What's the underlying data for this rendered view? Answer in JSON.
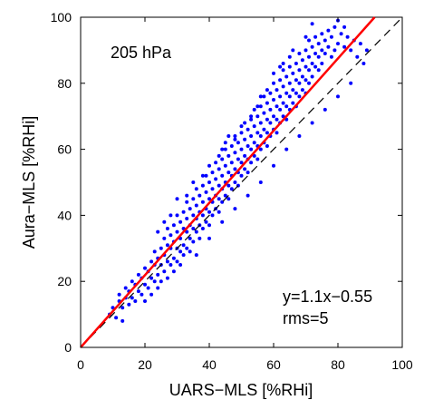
{
  "chart_data": {
    "type": "scatter",
    "xlabel": "UARS−MLS [%RHi]",
    "ylabel": "Aura−MLS [%RHi]",
    "xlim": [
      0,
      100
    ],
    "ylim": [
      0,
      100
    ],
    "xticks": [
      "0",
      "20",
      "40",
      "60",
      "80",
      "100"
    ],
    "yticks": [
      "0",
      "20",
      "40",
      "60",
      "80",
      "100"
    ],
    "grid": false,
    "annotations": {
      "level": "205 hPa",
      "fit": "y=1.1x−0.55",
      "rms": "rms=5"
    },
    "fit_line": {
      "slope": 1.1,
      "intercept": -0.55,
      "color": "#ff0000"
    },
    "reference_line": {
      "slope": 1,
      "intercept": 0,
      "style": "dashed",
      "color": "#000000"
    },
    "point_color": "#0000ff",
    "points": [
      [
        9,
        10
      ],
      [
        10,
        12
      ],
      [
        11,
        9
      ],
      [
        12,
        14
      ],
      [
        12,
        16
      ],
      [
        13,
        8
      ],
      [
        13,
        12
      ],
      [
        14,
        15
      ],
      [
        14,
        18
      ],
      [
        15,
        13
      ],
      [
        15,
        17
      ],
      [
        16,
        20
      ],
      [
        16,
        15
      ],
      [
        17,
        14
      ],
      [
        17,
        19
      ],
      [
        18,
        22
      ],
      [
        18,
        17
      ],
      [
        19,
        21
      ],
      [
        19,
        16
      ],
      [
        20,
        24
      ],
      [
        20,
        19
      ],
      [
        20,
        14
      ],
      [
        21,
        23
      ],
      [
        21,
        18
      ],
      [
        22,
        26
      ],
      [
        22,
        21
      ],
      [
        22,
        16
      ],
      [
        23,
        25
      ],
      [
        23,
        20
      ],
      [
        23,
        29
      ],
      [
        24,
        27
      ],
      [
        24,
        22
      ],
      [
        24,
        18
      ],
      [
        25,
        30
      ],
      [
        25,
        25
      ],
      [
        25,
        20
      ],
      [
        26,
        28
      ],
      [
        26,
        33
      ],
      [
        26,
        23
      ],
      [
        27,
        31
      ],
      [
        27,
        26
      ],
      [
        27,
        21
      ],
      [
        27,
        36
      ],
      [
        28,
        30
      ],
      [
        28,
        25
      ],
      [
        28,
        34
      ],
      [
        29,
        32
      ],
      [
        29,
        27
      ],
      [
        29,
        37
      ],
      [
        29,
        23
      ],
      [
        30,
        35
      ],
      [
        30,
        30
      ],
      [
        30,
        26
      ],
      [
        30,
        40
      ],
      [
        31,
        33
      ],
      [
        31,
        29
      ],
      [
        31,
        38
      ],
      [
        31,
        25
      ],
      [
        32,
        36
      ],
      [
        32,
        31
      ],
      [
        32,
        41
      ],
      [
        32,
        28
      ],
      [
        33,
        35
      ],
      [
        33,
        39
      ],
      [
        33,
        30
      ],
      [
        33,
        44
      ],
      [
        34,
        37
      ],
      [
        34,
        33
      ],
      [
        34,
        42
      ],
      [
        34,
        29
      ],
      [
        35,
        40
      ],
      [
        35,
        36
      ],
      [
        35,
        45
      ],
      [
        35,
        32
      ],
      [
        36,
        39
      ],
      [
        36,
        43
      ],
      [
        36,
        35
      ],
      [
        36,
        48
      ],
      [
        37,
        41
      ],
      [
        37,
        37
      ],
      [
        37,
        46
      ],
      [
        37,
        33
      ],
      [
        38,
        44
      ],
      [
        38,
        40
      ],
      [
        38,
        49
      ],
      [
        38,
        36
      ],
      [
        39,
        42
      ],
      [
        39,
        47
      ],
      [
        39,
        38
      ],
      [
        39,
        52
      ],
      [
        40,
        45
      ],
      [
        40,
        41
      ],
      [
        40,
        50
      ],
      [
        40,
        37
      ],
      [
        41,
        48
      ],
      [
        41,
        44
      ],
      [
        41,
        53
      ],
      [
        41,
        40
      ],
      [
        42,
        46
      ],
      [
        42,
        51
      ],
      [
        42,
        42
      ],
      [
        42,
        56
      ],
      [
        43,
        49
      ],
      [
        43,
        45
      ],
      [
        43,
        54
      ],
      [
        43,
        41
      ],
      [
        44,
        52
      ],
      [
        44,
        48
      ],
      [
        44,
        57
      ],
      [
        44,
        44
      ],
      [
        45,
        50
      ],
      [
        45,
        55
      ],
      [
        45,
        46
      ],
      [
        45,
        60
      ],
      [
        46,
        53
      ],
      [
        46,
        49
      ],
      [
        46,
        58
      ],
      [
        46,
        45
      ],
      [
        47,
        56
      ],
      [
        47,
        52
      ],
      [
        47,
        61
      ],
      [
        47,
        48
      ],
      [
        48,
        54
      ],
      [
        48,
        59
      ],
      [
        48,
        50
      ],
      [
        48,
        64
      ],
      [
        49,
        57
      ],
      [
        49,
        53
      ],
      [
        49,
        62
      ],
      [
        49,
        49
      ],
      [
        50,
        60
      ],
      [
        50,
        56
      ],
      [
        50,
        65
      ],
      [
        50,
        52
      ],
      [
        51,
        58
      ],
      [
        51,
        63
      ],
      [
        51,
        54
      ],
      [
        51,
        68
      ],
      [
        52,
        61
      ],
      [
        52,
        57
      ],
      [
        52,
        66
      ],
      [
        52,
        53
      ],
      [
        53,
        64
      ],
      [
        53,
        60
      ],
      [
        53,
        69
      ],
      [
        53,
        56
      ],
      [
        54,
        62
      ],
      [
        54,
        67
      ],
      [
        54,
        58
      ],
      [
        54,
        72
      ],
      [
        55,
        65
      ],
      [
        55,
        61
      ],
      [
        55,
        70
      ],
      [
        55,
        57
      ],
      [
        56,
        68
      ],
      [
        56,
        64
      ],
      [
        56,
        73
      ],
      [
        56,
        60
      ],
      [
        57,
        66
      ],
      [
        57,
        71
      ],
      [
        57,
        62
      ],
      [
        57,
        76
      ],
      [
        58,
        69
      ],
      [
        58,
        65
      ],
      [
        58,
        74
      ],
      [
        58,
        61
      ],
      [
        59,
        72
      ],
      [
        59,
        68
      ],
      [
        59,
        77
      ],
      [
        59,
        64
      ],
      [
        60,
        70
      ],
      [
        60,
        75
      ],
      [
        60,
        66
      ],
      [
        60,
        80
      ],
      [
        61,
        73
      ],
      [
        61,
        69
      ],
      [
        61,
        78
      ],
      [
        61,
        65
      ],
      [
        62,
        76
      ],
      [
        62,
        72
      ],
      [
        62,
        81
      ],
      [
        62,
        68
      ],
      [
        63,
        74
      ],
      [
        63,
        79
      ],
      [
        63,
        70
      ],
      [
        63,
        84
      ],
      [
        64,
        77
      ],
      [
        64,
        73
      ],
      [
        64,
        82
      ],
      [
        64,
        69
      ],
      [
        65,
        80
      ],
      [
        65,
        76
      ],
      [
        65,
        85
      ],
      [
        65,
        72
      ],
      [
        66,
        78
      ],
      [
        66,
        83
      ],
      [
        66,
        74
      ],
      [
        67,
        81
      ],
      [
        67,
        77
      ],
      [
        67,
        86
      ],
      [
        67,
        73
      ],
      [
        68,
        84
      ],
      [
        68,
        80
      ],
      [
        68,
        89
      ],
      [
        68,
        76
      ],
      [
        69,
        82
      ],
      [
        69,
        87
      ],
      [
        69,
        78
      ],
      [
        70,
        85
      ],
      [
        70,
        81
      ],
      [
        70,
        90
      ],
      [
        70,
        77
      ],
      [
        71,
        88
      ],
      [
        71,
        84
      ],
      [
        71,
        93
      ],
      [
        71,
        80
      ],
      [
        72,
        86
      ],
      [
        72,
        91
      ],
      [
        72,
        82
      ],
      [
        73,
        89
      ],
      [
        73,
        85
      ],
      [
        73,
        94
      ],
      [
        74,
        92
      ],
      [
        74,
        88
      ],
      [
        74,
        84
      ],
      [
        75,
        90
      ],
      [
        75,
        95
      ],
      [
        75,
        86
      ],
      [
        76,
        93
      ],
      [
        76,
        89
      ],
      [
        77,
        96
      ],
      [
        77,
        91
      ],
      [
        78,
        94
      ],
      [
        78,
        88
      ],
      [
        79,
        97
      ],
      [
        79,
        90
      ],
      [
        80,
        92
      ],
      [
        80,
        99
      ],
      [
        81,
        95
      ],
      [
        82,
        91
      ],
      [
        82,
        97
      ],
      [
        83,
        94
      ],
      [
        84,
        90
      ],
      [
        85,
        93
      ],
      [
        86,
        88
      ],
      [
        87,
        92
      ],
      [
        88,
        86
      ],
      [
        89,
        90
      ],
      [
        30,
        45
      ],
      [
        35,
        50
      ],
      [
        40,
        55
      ],
      [
        45,
        62
      ],
      [
        50,
        67
      ],
      [
        55,
        73
      ],
      [
        60,
        83
      ],
      [
        65,
        88
      ],
      [
        28,
        40
      ],
      [
        33,
        46
      ],
      [
        38,
        52
      ],
      [
        43,
        58
      ],
      [
        48,
        63
      ],
      [
        53,
        70
      ],
      [
        58,
        78
      ],
      [
        63,
        86
      ],
      [
        24,
        35
      ],
      [
        26,
        38
      ],
      [
        44,
        60
      ],
      [
        46,
        64
      ],
      [
        56,
        76
      ],
      [
        62,
        85
      ],
      [
        66,
        90
      ],
      [
        70,
        94
      ],
      [
        72,
        98
      ],
      [
        36,
        28
      ],
      [
        40,
        33
      ],
      [
        44,
        38
      ],
      [
        48,
        42
      ],
      [
        52,
        46
      ],
      [
        56,
        50
      ],
      [
        60,
        55
      ],
      [
        64,
        60
      ],
      [
        68,
        64
      ],
      [
        72,
        68
      ],
      [
        76,
        72
      ],
      [
        80,
        76
      ],
      [
        84,
        80
      ]
    ]
  }
}
